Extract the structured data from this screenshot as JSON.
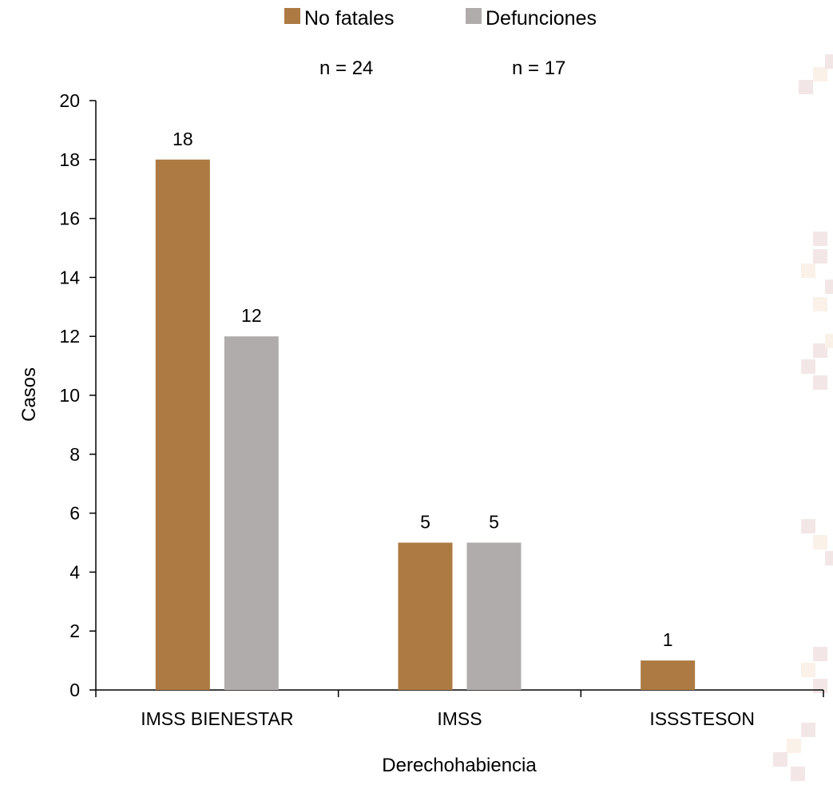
{
  "chart_data": {
    "type": "bar",
    "categories": [
      "IMSS BIENESTAR",
      "IMSS",
      "ISSSTESON"
    ],
    "series": [
      {
        "name": "No fatales",
        "values": [
          18,
          5,
          1
        ],
        "color": "#AC7A42"
      },
      {
        "name": "Defunciones",
        "values": [
          12,
          5,
          0
        ],
        "color": "#B0ACAB"
      }
    ],
    "data_labels": [
      [
        "18",
        "5",
        "1"
      ],
      [
        "12",
        "5",
        ""
      ]
    ],
    "legend_notes": [
      "n = 24",
      "n = 17"
    ],
    "xlabel": "Derechohabiencia",
    "ylabel": "Casos",
    "ylim": [
      0,
      20
    ],
    "yticks": [
      0,
      2,
      4,
      6,
      8,
      10,
      12,
      14,
      16,
      18,
      20
    ],
    "legend_position": "top-center",
    "grid": false,
    "decoration_color": "#F3E6E6"
  }
}
